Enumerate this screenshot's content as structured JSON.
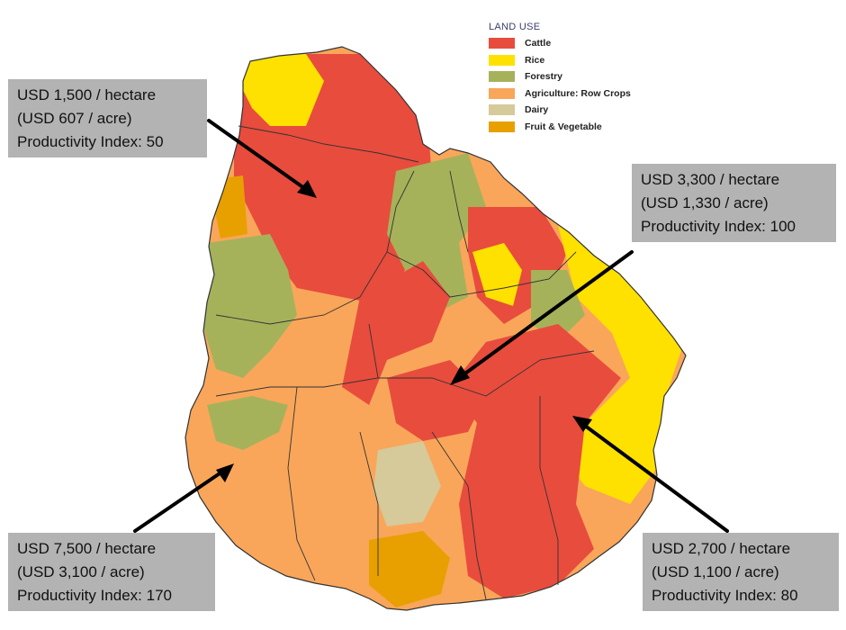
{
  "legend": {
    "title": "LAND USE",
    "items": [
      {
        "label": "Cattle",
        "color": "#e84c3d"
      },
      {
        "label": "Rice",
        "color": "#ffe100"
      },
      {
        "label": "Forestry",
        "color": "#a6b25a"
      },
      {
        "label": "Agriculture: Row Crops",
        "color": "#f9a65a"
      },
      {
        "label": "Dairy",
        "color": "#d6c99a"
      },
      {
        "label": "Fruit & Vegetable",
        "color": "#e8a000"
      }
    ]
  },
  "callouts": {
    "north": {
      "line1": "USD 1,500 / hectare",
      "line2": "(USD 607 / acre)",
      "line3": "Productivity Index: 50"
    },
    "center_east": {
      "line1": "USD 3,300 / hectare",
      "line2": "(USD 1,330 / acre)",
      "line3": "Productivity Index: 100"
    },
    "southwest": {
      "line1": "USD 7,500 / hectare",
      "line2": "(USD 3,100 / acre)",
      "line3": "Productivity Index: 170"
    },
    "southeast": {
      "line1": "USD 2,700 / hectare",
      "line2": "(USD 1,100 / acre)",
      "line3": "Productivity Index: 80"
    }
  }
}
